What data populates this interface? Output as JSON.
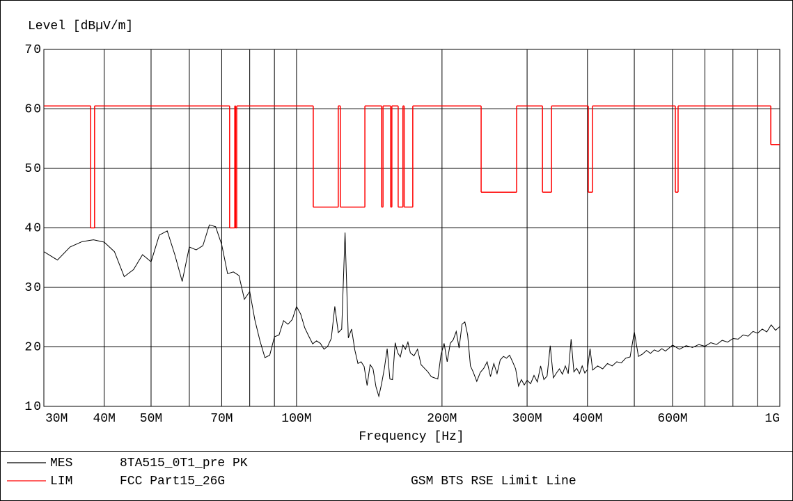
{
  "chart_data": {
    "type": "line",
    "ylabel": "Level [dBµV/m]",
    "xlabel": "Frequency [Hz]",
    "xscale": "log",
    "xlim": [
      30000000.0,
      1000000000.0
    ],
    "ylim": [
      10,
      70
    ],
    "yticks": [
      10,
      20,
      30,
      40,
      50,
      60,
      70
    ],
    "xticks": [
      {
        "value": 30000000.0,
        "label": "30M"
      },
      {
        "value": 40000000.0,
        "label": "40M"
      },
      {
        "value": 50000000.0,
        "label": "50M"
      },
      {
        "value": 70000000.0,
        "label": "70M"
      },
      {
        "value": 100000000.0,
        "label": "100M"
      },
      {
        "value": 200000000.0,
        "label": "200M"
      },
      {
        "value": 300000000.0,
        "label": "300M"
      },
      {
        "value": 400000000.0,
        "label": "400M"
      },
      {
        "value": 600000000.0,
        "label": "600M"
      },
      {
        "value": 1000000000.0,
        "label": "1G"
      }
    ],
    "xminor": [
      60000000.0,
      80000000.0,
      90000000.0,
      500000000.0,
      700000000.0,
      800000000.0,
      900000000.0
    ],
    "grid": true,
    "series": [
      {
        "name": "MES",
        "description": "8TA515_0T1_pre PK",
        "color": "#000000",
        "x": [
          30000000.0,
          32000000.0,
          34000000.0,
          36000000.0,
          38000000.0,
          40000000.0,
          42000000.0,
          44000000.0,
          46000000.0,
          48000000.0,
          50000000.0,
          52000000.0,
          54000000.0,
          56000000.0,
          58000000.0,
          60000000.0,
          62000000.0,
          64000000.0,
          66000000.0,
          68000000.0,
          70000000.0,
          72000000.0,
          74000000.0,
          76000000.0,
          78000000.0,
          80000000.0,
          82000000.0,
          84000000.0,
          86000000.0,
          88000000.0,
          90000000.0,
          92000000.0,
          94000000.0,
          96000000.0,
          98000000.0,
          100000000.0,
          102000000.0,
          104000000.0,
          106000000.0,
          108000000.0,
          110000000.0,
          112000000.0,
          114000000.0,
          116000000.0,
          118000000.0,
          120000000.0,
          122000000.0,
          124000000.0,
          126000000.0,
          128000000.0,
          130000000.0,
          132000000.0,
          134000000.0,
          136000000.0,
          138000000.0,
          140000000.0,
          142000000.0,
          144000000.0,
          146000000.0,
          148000000.0,
          150000000.0,
          152000000.0,
          154000000.0,
          156000000.0,
          158000000.0,
          160000000.0,
          162000000.0,
          164000000.0,
          166000000.0,
          168000000.0,
          170000000.0,
          172000000.0,
          175000000.0,
          178000000.0,
          181000000.0,
          184000000.0,
          187000000.0,
          190000000.0,
          193000000.0,
          196000000.0,
          199000000.0,
          202000000.0,
          205000000.0,
          208000000.0,
          211000000.0,
          214000000.0,
          217000000.0,
          220000000.0,
          223000000.0,
          226000000.0,
          229000000.0,
          232000000.0,
          236000000.0,
          240000000.0,
          244000000.0,
          248000000.0,
          252000000.0,
          256000000.0,
          260000000.0,
          264000000.0,
          268000000.0,
          272000000.0,
          276000000.0,
          280000000.0,
          284000000.0,
          288000000.0,
          292000000.0,
          296000000.0,
          300000000.0,
          305000000.0,
          310000000.0,
          315000000.0,
          320000000.0,
          325000000.0,
          330000000.0,
          335000000.0,
          340000000.0,
          345000000.0,
          350000000.0,
          355000000.0,
          360000000.0,
          365000000.0,
          370000000.0,
          375000000.0,
          380000000.0,
          385000000.0,
          390000000.0,
          395000000.0,
          400000000.0,
          405000000.0,
          410000000.0,
          420000000.0,
          430000000.0,
          440000000.0,
          450000000.0,
          460000000.0,
          470000000.0,
          480000000.0,
          490000000.0,
          500000000.0,
          510000000.0,
          520000000.0,
          530000000.0,
          540000000.0,
          550000000.0,
          560000000.0,
          570000000.0,
          580000000.0,
          590000000.0,
          600000000.0,
          620000000.0,
          640000000.0,
          660000000.0,
          680000000.0,
          700000000.0,
          720000000.0,
          740000000.0,
          760000000.0,
          780000000.0,
          800000000.0,
          820000000.0,
          840000000.0,
          860000000.0,
          880000000.0,
          900000000.0,
          920000000.0,
          940000000.0,
          960000000.0,
          980000000.0,
          1000000000.0
        ],
        "values": [
          36,
          34.6,
          36.8,
          37.7,
          38,
          37.6,
          36,
          31.8,
          33,
          35.5,
          34.3,
          38.8,
          39.5,
          35.5,
          31,
          36.8,
          36.3,
          37,
          40.5,
          40.2,
          37.2,
          32.3,
          32.6,
          32,
          28,
          29.3,
          24.5,
          21,
          18.2,
          18.6,
          21.7,
          22,
          24.4,
          23.8,
          24.6,
          26.8,
          25.5,
          23.2,
          21.8,
          20.5,
          21,
          20.6,
          19.6,
          20.1,
          21.4,
          26.8,
          22.4,
          23,
          39.2,
          21.5,
          23,
          19.5,
          17.2,
          17.5,
          16.7,
          13.5,
          17,
          16.3,
          13.3,
          11.7,
          13.8,
          16.4,
          19.7,
          14.6,
          14.5,
          20.7,
          19,
          18.3,
          20.3,
          19.6,
          20.8,
          19,
          18.5,
          19.6,
          17,
          16.4,
          15.8,
          15,
          14.8,
          14.6,
          18.6,
          20.6,
          17.5,
          20.6,
          21.2,
          22.6,
          19.8,
          23.8,
          24.2,
          22,
          16.8,
          15.8,
          14.2,
          15.7,
          16.4,
          17.5,
          15,
          17.2,
          15.5,
          17.8,
          18.4,
          18.1,
          18.6,
          17.5,
          16.3,
          13.4,
          14.5,
          13.6,
          14.4,
          13.8,
          15.2,
          14.1,
          16.8,
          14.5,
          15.1,
          20.2,
          14.8,
          15.6,
          16.3,
          15.4,
          16.8,
          15.5,
          21.3,
          15.8,
          16.4,
          15.5,
          16.8,
          15.6,
          16.2,
          19.7,
          16.1,
          16.8,
          16.3,
          17.2,
          16.8,
          17.5,
          17.3,
          18.1,
          18.3,
          22.5,
          18.4,
          18.8,
          19.4,
          18.9,
          19.5,
          19.2,
          19.7,
          19.3,
          19.8,
          20.3,
          19.6,
          20.2,
          19.9,
          20.4,
          20.1,
          20.7,
          20.4,
          21.1,
          20.8,
          21.4,
          21.3,
          22,
          21.8,
          22.6,
          22.3,
          23,
          22.5,
          23.7,
          22.8,
          23.4
        ]
      },
      {
        "name": "LIM",
        "description": "FCC Part15_26G",
        "note": "GSM BTS RSE Limit Line",
        "color": "#ff0000",
        "step": "post",
        "x": [
          30000000.0,
          37500000.0,
          38200000.0,
          72700000.0,
          74500000.0,
          74800000.0,
          75200000.0,
          108300000.0,
          122000000.0,
          123200000.0,
          138500000.0,
          150000000.0,
          151000000.0,
          156600000.0,
          157500000.0,
          162300000.0,
          166000000.0,
          167000000.0,
          174000000.0,
          241000000.0,
          285400000.0,
          322800000.0,
          337000000.0,
          401600000.0,
          409700000.0,
          608000000.0,
          616000000.0,
          958000000.0,
          1000000000.0
        ],
        "values": [
          60.5,
          40,
          60.5,
          40,
          60.5,
          40,
          60.5,
          43.5,
          60.5,
          43.5,
          60.5,
          43.5,
          60.5,
          43.5,
          60.5,
          43.5,
          60.5,
          43.5,
          60.5,
          46,
          60.5,
          46,
          60.5,
          46,
          60.5,
          46,
          60.5,
          54,
          54
        ]
      }
    ]
  }
}
